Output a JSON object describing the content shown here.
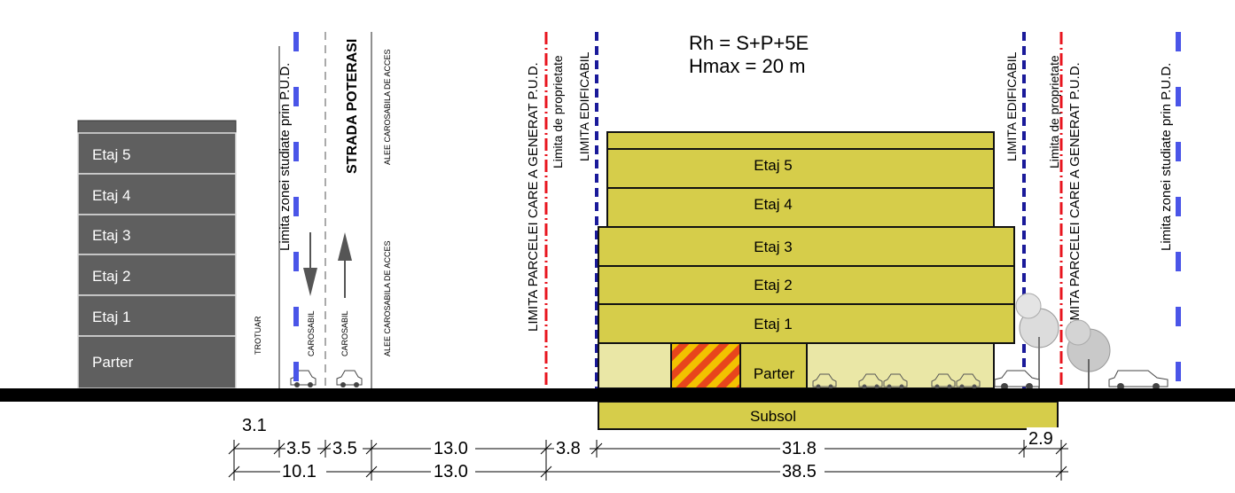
{
  "formula": {
    "rh": "Rh = S+P+5E",
    "hmax": "Hmax = 20 m"
  },
  "left_building": {
    "floors": [
      "Etaj 5",
      "Etaj 4",
      "Etaj 3",
      "Etaj 2",
      "Etaj 1",
      "Parter"
    ],
    "color": "#5f5f5f"
  },
  "main_building": {
    "floors": [
      "Etaj 5",
      "Etaj 4",
      "Etaj 3",
      "Etaj 2",
      "Etaj 1"
    ],
    "ground": "Parter",
    "basement": "Subsol",
    "color": "#d6cd4a",
    "light_color": "#eae7a6"
  },
  "street": {
    "name": "STRADA  POTERASI",
    "lane_left": "CAROSABIL",
    "lane_right": "CAROSABIL",
    "sidewalk": "TROTUAR",
    "access_top": "ALEE CAROSABILA DE ACCES",
    "access_bottom": "ALEE CAROSABILA DE ACCES"
  },
  "limits": {
    "study_zone": "Limita zonei studiate prin P.U.D.",
    "parcel_pud": "LIMITA PARCELEI CARE A GENERAT P.U.D.",
    "property": "Limita de proprietate",
    "buildable": "LIMITA EDIFICABIL",
    "study_color": "#4a55e8",
    "property_color": "#e8141e",
    "buildable_color": "#1a1a9a"
  },
  "dimensions": {
    "row1": [
      "3.1",
      "3.5",
      "3.5",
      "13.0",
      "3.8",
      "31.8",
      "2.9"
    ],
    "row2": [
      "10.1",
      "13.0",
      "38.5"
    ]
  }
}
